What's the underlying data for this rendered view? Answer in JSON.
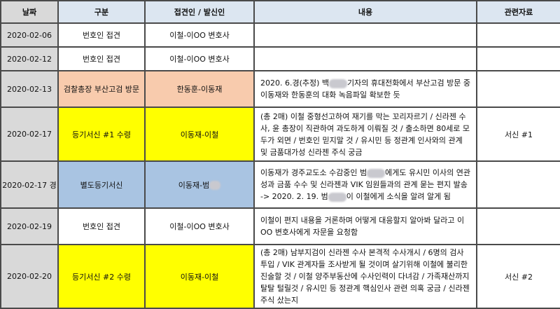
{
  "headers": [
    "날짜",
    "구분",
    "접견인 / 발신인",
    "내용",
    "관련자료"
  ],
  "colors": {
    "header": "#dce6f1",
    "date": "#d9d9d9",
    "orange": "#f8cbad",
    "yellow": "#ffff00",
    "blue": "#a9c4e2"
  },
  "rows": [
    {
      "date": "2020-02-06",
      "type": "번호인 접견",
      "person": "이철-이OO 변호사",
      "content": "",
      "ref": ""
    },
    {
      "date": "2020-02-12",
      "type": "번호인 접견",
      "person": "이철-이OO 변호사",
      "content": "",
      "ref": ""
    },
    {
      "date": "2020-02-13",
      "type": "검찰총장 부산고검 방문",
      "person": "한동훈-이동재",
      "content_a": "2020. 6.경(추정) 백",
      "content_b": "기자의 휴대전화에서 부산고검 방문 중 이동재와 한동훈의 대화 녹음파일 확보한 듯",
      "ref": ""
    },
    {
      "date": "2020-02-17",
      "type": "등기서신 #1 수령",
      "person": "이동재-이철",
      "content": "(총 2매) 이철 중형선고하여 재기를 막는 꼬리자르기 / 신라젠 수사, 윤 총장이 직관하여 과도하게 이뤄질 것 / 출소하면 80세로 모두가 외면 / 번호인 믿지말 것 / 유시민 등 정관계 인사와의 관계 및 금품대가성 신라젠 주식 궁금",
      "ref": "서신 #1"
    },
    {
      "date": "2020-02-17 경",
      "type": "별도등기서신",
      "person": "이동재-범",
      "content_a": "이동재가 경주교도소 수감중인 범",
      "content_b": "에게도 유시민 이사의 연관성과 금품 수수 및 신라젠과 VIK 임원들과의 관계 묻는 편지 발송 -> 2020. 2. 19. 범",
      "content_c": "이 이철에게 소식을 알려 알게 됨",
      "ref": ""
    },
    {
      "date": "2020-02-19",
      "type": "번호인 접견",
      "person": "이철-이OO 변호사",
      "content": "이철이 편지 내용을 거론하며 어떻게 대응할지 알아봐 달라고 이OO 변호사에게 자문을 요청함",
      "ref": ""
    },
    {
      "date": "2020-02-20",
      "type": "등기서신 #2 수령",
      "person": "이동재-이철",
      "content": "(총 2매) 남부지검이 신라젠 수사 본격적 수사개시 / 6명의 검사 투입 / VIK 관계자들 조사받게 될 것이며 살기위해 이철에 불리한 진술할 것 / 이철 양주부동산에 수사인력이 다녀감 / 가족재산까지 탈탈 털릴것 / 유시민 등 정관계 핵심인사 관련 의혹 궁금 / 신라젠 주식 샀는지",
      "ref": "서신 #2"
    }
  ]
}
